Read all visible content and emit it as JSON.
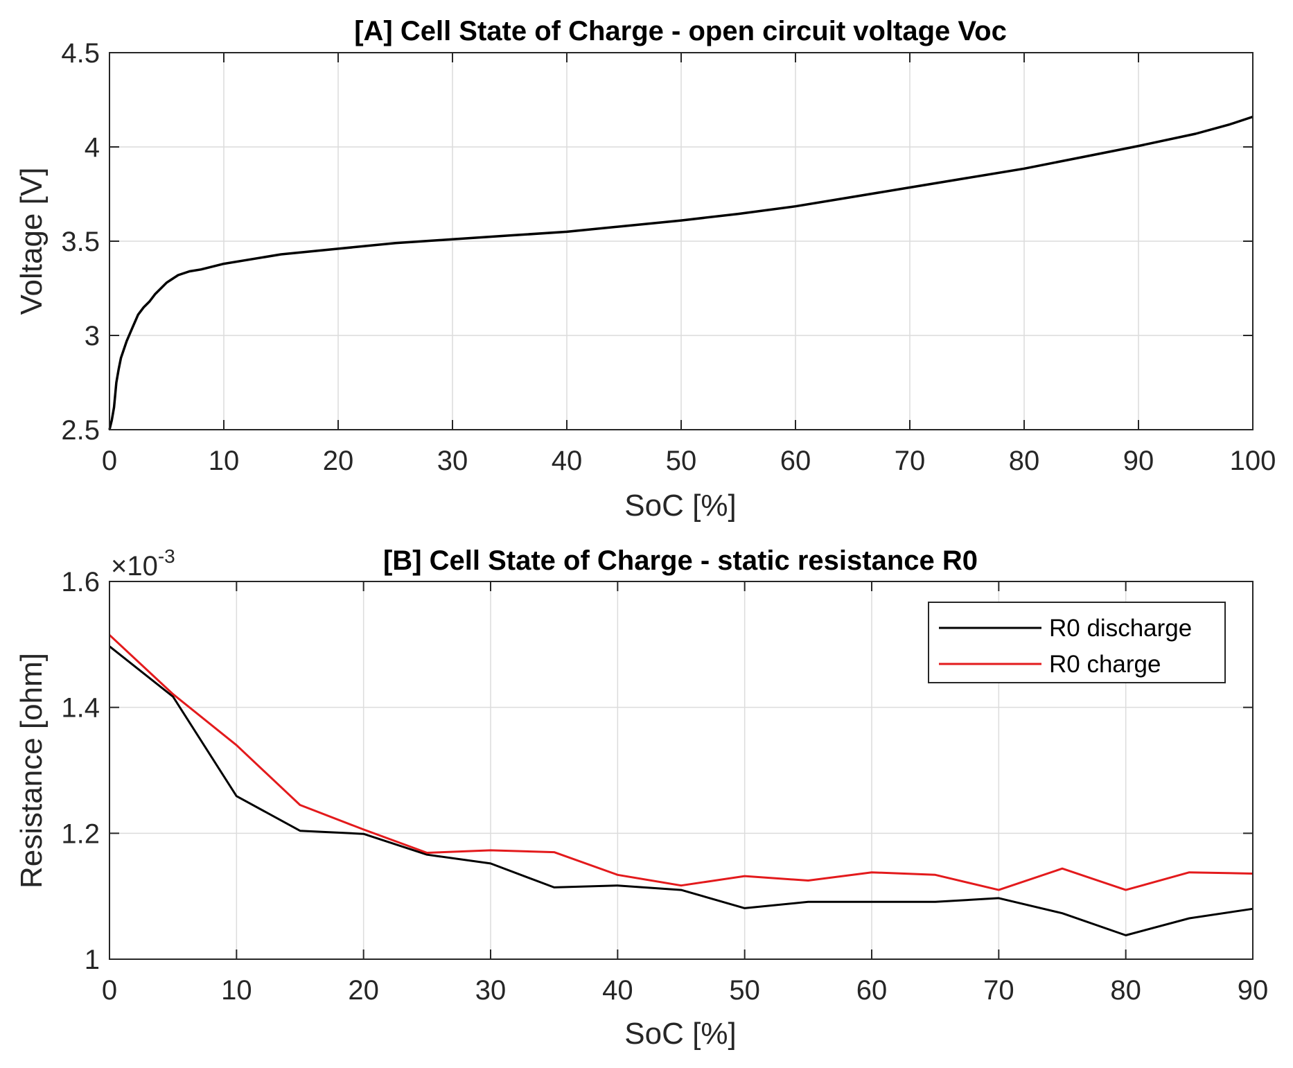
{
  "chart_data": [
    {
      "type": "line",
      "title": "[A] Cell State of Charge - open circuit voltage Voc",
      "xlabel": "SoC [%]",
      "ylabel": "Voltage [V]",
      "xlim": [
        0,
        100
      ],
      "ylim": [
        2.5,
        4.5
      ],
      "xticks": [
        0,
        10,
        20,
        30,
        40,
        50,
        60,
        70,
        80,
        90,
        100
      ],
      "xtick_labels": [
        "0",
        "10",
        "20",
        "30",
        "40",
        "50",
        "60",
        "70",
        "80",
        "90",
        "100"
      ],
      "yticks": [
        2.5,
        3,
        3.5,
        4,
        4.5
      ],
      "ytick_labels": [
        "2.5",
        "3",
        "3.5",
        "4",
        "4.5"
      ],
      "grid": true,
      "series": [
        {
          "name": "Voc",
          "color": "#000000",
          "x": [
            0,
            0.2,
            0.4,
            0.6,
            0.8,
            1,
            1.5,
            2,
            2.5,
            3,
            3.5,
            4,
            4.5,
            5,
            5.5,
            6,
            7,
            8,
            10,
            12,
            15,
            20,
            25,
            30,
            35,
            40,
            45,
            50,
            55,
            60,
            65,
            70,
            75,
            80,
            85,
            90,
            95,
            98,
            100
          ],
          "y": [
            2.5,
            2.55,
            2.62,
            2.75,
            2.82,
            2.88,
            2.97,
            3.04,
            3.11,
            3.15,
            3.18,
            3.22,
            3.25,
            3.28,
            3.3,
            3.32,
            3.34,
            3.35,
            3.38,
            3.4,
            3.43,
            3.46,
            3.49,
            3.51,
            3.53,
            3.55,
            3.58,
            3.61,
            3.645,
            3.685,
            3.735,
            3.785,
            3.835,
            3.885,
            3.945,
            4.005,
            4.07,
            4.12,
            4.16
          ]
        }
      ]
    },
    {
      "type": "line",
      "title": "[B] Cell State of Charge - static resistance R0",
      "xlabel": "SoC [%]",
      "ylabel": "Resistance [ohm]",
      "xlim": [
        0,
        90
      ],
      "ylim": [
        1.0,
        1.6
      ],
      "y_multiplier": {
        "base": "×10",
        "exponent": "-3"
      },
      "xticks": [
        0,
        10,
        20,
        30,
        40,
        50,
        60,
        70,
        80,
        90
      ],
      "xtick_labels": [
        "0",
        "10",
        "20",
        "30",
        "40",
        "50",
        "60",
        "70",
        "80",
        "90"
      ],
      "yticks": [
        1.0,
        1.2,
        1.4,
        1.6
      ],
      "ytick_labels": [
        "1",
        "1.2",
        "1.4",
        "1.6"
      ],
      "grid": true,
      "legend_position": "top-right",
      "series": [
        {
          "name": "R0 discharge",
          "color": "#000000",
          "x": [
            0,
            5,
            10,
            15,
            20,
            25,
            30,
            35,
            40,
            45,
            50,
            55,
            60,
            65,
            70,
            75,
            80,
            85,
            90
          ],
          "y": [
            1.497,
            1.417,
            1.259,
            1.204,
            1.199,
            1.166,
            1.152,
            1.114,
            1.117,
            1.11,
            1.081,
            1.091,
            1.091,
            1.091,
            1.097,
            1.073,
            1.038,
            1.065,
            1.08
          ]
        },
        {
          "name": "R0 charge",
          "color": "#e31a1c",
          "x": [
            0,
            5,
            10,
            15,
            20,
            25,
            30,
            35,
            40,
            45,
            50,
            55,
            60,
            65,
            70,
            75,
            80,
            85,
            90
          ],
          "y": [
            1.515,
            1.421,
            1.34,
            1.245,
            1.206,
            1.169,
            1.173,
            1.17,
            1.134,
            1.117,
            1.132,
            1.125,
            1.138,
            1.134,
            1.11,
            1.144,
            1.11,
            1.138,
            1.136
          ]
        }
      ]
    }
  ]
}
